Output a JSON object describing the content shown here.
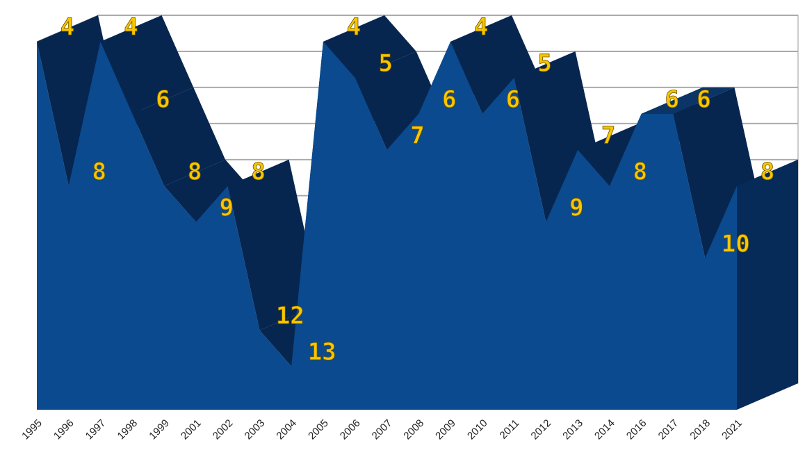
{
  "chart_data": {
    "type": "area3d",
    "categories": [
      "1995",
      "1996",
      "1997",
      "1998",
      "1999",
      "2001",
      "2002",
      "2003",
      "2004",
      "2005",
      "2006",
      "2007",
      "2008",
      "2009",
      "2010",
      "2011",
      "2012",
      "2013",
      "2014",
      "2016",
      "2017",
      "2018",
      "2021"
    ],
    "values": [
      4,
      8,
      4,
      6,
      8,
      9,
      8,
      12,
      13,
      4,
      5,
      7,
      6,
      4,
      6,
      5,
      9,
      7,
      8,
      6,
      6,
      10,
      8
    ],
    "color": "#0b4a8e",
    "ylim": [
      14.2,
      4
    ],
    "yticks": [
      4,
      5,
      6,
      7,
      8,
      9,
      10,
      11,
      12,
      13
    ],
    "grid": true,
    "inverted": true
  }
}
